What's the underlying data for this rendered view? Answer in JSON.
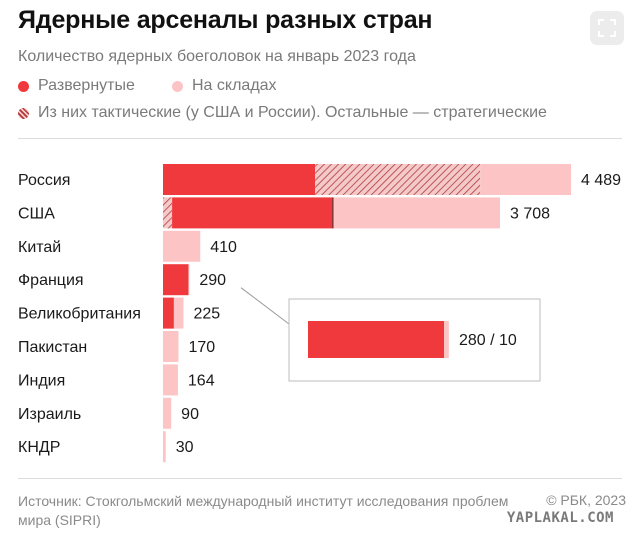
{
  "title": "Ядерные арсеналы разных стран",
  "subtitle": "Количество ядерных боеголовок на январь 2023 года",
  "legend": {
    "deployed": "Развернутые",
    "stored": "На складах",
    "tactical": "Из них тактические (у США и России). Остальные — стратегические"
  },
  "colors": {
    "deployed": "#f0393d",
    "stored": "#fdc4c5",
    "tactical_hatch": "#b23a3a"
  },
  "expand_icon": "expand-icon",
  "chart_data": {
    "type": "bar",
    "orientation": "horizontal",
    "stacked": true,
    "categories": [
      "Россия",
      "США",
      "Китай",
      "Франция",
      "Великобритания",
      "Пакистан",
      "Индия",
      "Израиль",
      "КНДР"
    ],
    "total_labels": [
      "4 489",
      "3 708",
      "410",
      "290",
      "225",
      "170",
      "164",
      "90",
      "30"
    ],
    "totals": [
      4489,
      3708,
      410,
      290,
      225,
      170,
      164,
      90,
      30
    ],
    "series": [
      {
        "name": "Развернутые",
        "values": [
          1674,
          1770,
          0,
          280,
          120,
          0,
          0,
          0,
          0
        ]
      },
      {
        "name": "Из них тактические (у США и России). Остальные — стратегические",
        "values": [
          1816,
          100,
          0,
          0,
          0,
          0,
          0,
          0,
          0
        ]
      },
      {
        "name": "На складах",
        "values": [
          999,
          1838,
          410,
          10,
          105,
          170,
          164,
          90,
          30
        ]
      }
    ],
    "inset": {
      "label": "280 / 10",
      "category": "Франция",
      "deployed": 280,
      "stored": 10
    },
    "grid": false
  },
  "footer": {
    "source": "Источник: Стокгольмский международный институт исследования проблем мира (SIPRI)",
    "copyright": "© РБК, 2023",
    "watermark": "YAPLAKAL.COM"
  }
}
